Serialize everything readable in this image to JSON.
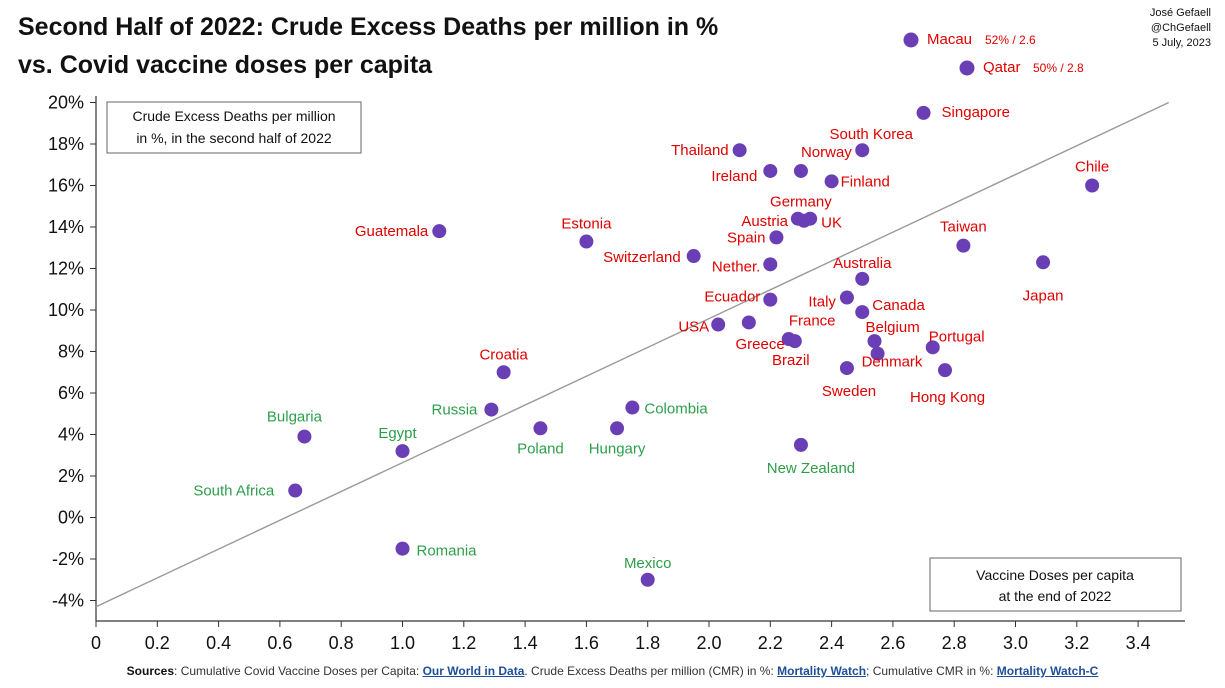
{
  "header": {
    "title_line1": "Second Half of 2022: Crude Excess Deaths per million in %",
    "title_line2": "vs. Covid vaccine doses per capita",
    "author": "José Gefaell",
    "handle": "@ChGefaell",
    "date": "5 July, 2023"
  },
  "footer": {
    "sources_label": "Sources",
    "text1": ": Cumulative Covid Vaccine Doses per Capita: ",
    "link1": "Our World in Data",
    "text2": ". Crude Excess Deaths per million (CMR) in %: ",
    "link2": "Mortality Watch",
    "text3": "; Cumulative CMR in %: ",
    "link3": "Mortality Watch-C"
  },
  "chart_data": {
    "type": "scatter",
    "y_note_line1": "Crude Excess Deaths per million",
    "y_note_line2": "in %, in the second half of 2022",
    "x_note_line1": "Vaccine Doses per capita",
    "x_note_line2": "at the end of 2022",
    "xlim": [
      0,
      3.5
    ],
    "ylim": [
      -5,
      20
    ],
    "x_ticks": [
      "0",
      "0.2",
      "0.4",
      "0.6",
      "0.8",
      "1.0",
      "1.2",
      "1.4",
      "1.6",
      "1.8",
      "2.0",
      "2.2",
      "2.4",
      "2.6",
      "2.8",
      "3.0",
      "3.2",
      "3.4"
    ],
    "y_ticks": [
      "20%",
      "18%",
      "16%",
      "14%",
      "12%",
      "10%",
      "8%",
      "6%",
      "4%",
      "2%",
      "0%",
      "-2%",
      "-4%"
    ],
    "grid": false,
    "trendline": {
      "x": [
        0,
        3.5
      ],
      "y": [
        -4.3,
        20
      ]
    },
    "colors": {
      "point": "#6a3fb5",
      "high_label": "#e00000",
      "low_label": "#2e9e4b",
      "trend": "#9a9a9a"
    },
    "outliers": [
      {
        "name": "Macau",
        "value_text": "52% / 2.6"
      },
      {
        "name": "Qatar",
        "value_text": "50% / 2.8"
      }
    ],
    "points": [
      {
        "name": "Singapore",
        "x": 2.7,
        "y": 19.5,
        "group": "high"
      },
      {
        "name": "South Korea",
        "x": 2.5,
        "y": 17.7,
        "group": "high"
      },
      {
        "name": "Thailand",
        "x": 2.1,
        "y": 17.7,
        "group": "high"
      },
      {
        "name": "Norway",
        "x": 2.3,
        "y": 16.7,
        "group": "high"
      },
      {
        "name": "Ireland",
        "x": 2.2,
        "y": 16.7,
        "group": "high"
      },
      {
        "name": "Finland",
        "x": 2.4,
        "y": 16.2,
        "group": "high"
      },
      {
        "name": "Chile",
        "x": 3.25,
        "y": 16.0,
        "group": "high"
      },
      {
        "name": "Germany",
        "x": 2.29,
        "y": 14.4,
        "group": "high"
      },
      {
        "name": "UK",
        "x": 2.33,
        "y": 14.4,
        "group": "high"
      },
      {
        "name": "Austria",
        "x": 2.31,
        "y": 14.3,
        "group": "high"
      },
      {
        "name": "Guatemala",
        "x": 1.12,
        "y": 13.8,
        "group": "high"
      },
      {
        "name": "Spain",
        "x": 2.22,
        "y": 13.5,
        "group": "high"
      },
      {
        "name": "Estonia",
        "x": 1.6,
        "y": 13.3,
        "group": "high"
      },
      {
        "name": "Taiwan",
        "x": 2.83,
        "y": 13.1,
        "group": "high"
      },
      {
        "name": "Switzerland",
        "x": 1.95,
        "y": 12.6,
        "group": "high"
      },
      {
        "name": "Japan",
        "x": 3.09,
        "y": 12.3,
        "group": "high"
      },
      {
        "name": "Nether.",
        "x": 2.2,
        "y": 12.2,
        "group": "high"
      },
      {
        "name": "Australia",
        "x": 2.5,
        "y": 11.5,
        "group": "high"
      },
      {
        "name": "Ecuador",
        "x": 2.2,
        "y": 10.5,
        "group": "high"
      },
      {
        "name": "Italy",
        "x": 2.45,
        "y": 10.6,
        "group": "high"
      },
      {
        "name": "Canada",
        "x": 2.5,
        "y": 9.9,
        "group": "high"
      },
      {
        "name": "USA",
        "x": 2.03,
        "y": 9.3,
        "group": "high"
      },
      {
        "name": "France",
        "x": 2.13,
        "y": 9.4,
        "group": "high"
      },
      {
        "name": "Greece",
        "x": 2.26,
        "y": 8.6,
        "group": "high"
      },
      {
        "name": "Brazil",
        "x": 2.28,
        "y": 8.5,
        "group": "high"
      },
      {
        "name": "Belgium",
        "x": 2.54,
        "y": 8.5,
        "group": "high"
      },
      {
        "name": "Portugal",
        "x": 2.73,
        "y": 8.2,
        "group": "high"
      },
      {
        "name": "Denmark",
        "x": 2.55,
        "y": 7.9,
        "group": "high"
      },
      {
        "name": "Sweden",
        "x": 2.45,
        "y": 7.2,
        "group": "high"
      },
      {
        "name": "Hong Kong",
        "x": 2.77,
        "y": 7.1,
        "group": "high"
      },
      {
        "name": "Croatia",
        "x": 1.33,
        "y": 7.0,
        "group": "high"
      },
      {
        "name": "Colombia",
        "x": 1.75,
        "y": 5.3,
        "group": "low"
      },
      {
        "name": "Russia",
        "x": 1.29,
        "y": 5.2,
        "group": "low"
      },
      {
        "name": "Poland",
        "x": 1.45,
        "y": 4.3,
        "group": "low"
      },
      {
        "name": "Hungary",
        "x": 1.7,
        "y": 4.3,
        "group": "low"
      },
      {
        "name": "Bulgaria",
        "x": 0.68,
        "y": 3.9,
        "group": "low"
      },
      {
        "name": "New Zealand",
        "x": 2.3,
        "y": 3.5,
        "group": "low"
      },
      {
        "name": "Egypt",
        "x": 1.0,
        "y": 3.2,
        "group": "low"
      },
      {
        "name": "South Africa",
        "x": 0.65,
        "y": 1.3,
        "group": "low"
      },
      {
        "name": "Romania",
        "x": 1.0,
        "y": -1.5,
        "group": "low"
      },
      {
        "name": "Mexico",
        "x": 1.8,
        "y": -3.0,
        "group": "low"
      }
    ]
  }
}
